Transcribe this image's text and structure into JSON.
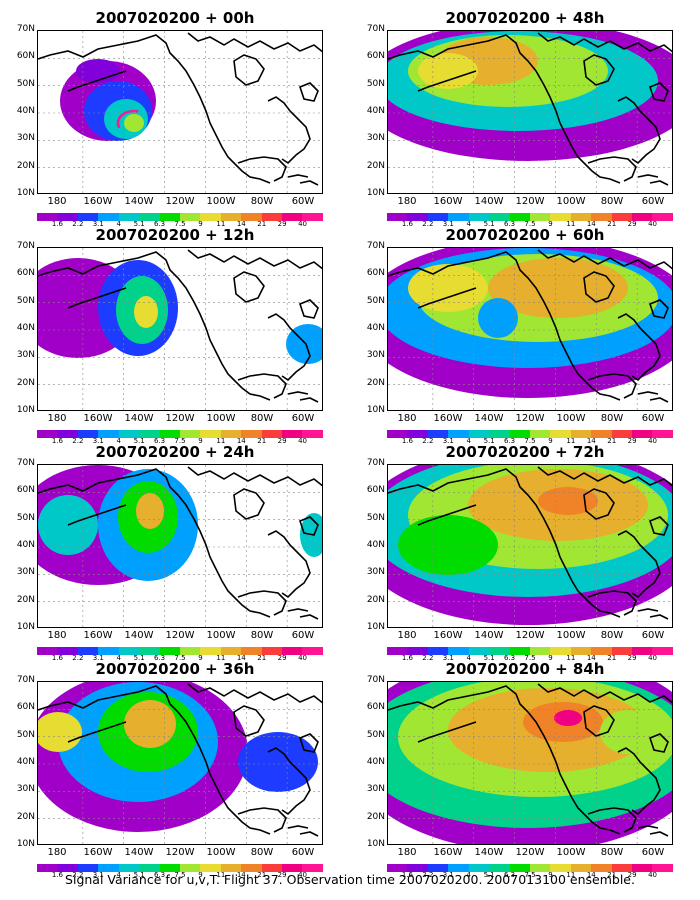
{
  "panels": [
    {
      "title": "2007020200  +  00h",
      "level": 0
    },
    {
      "title": "2007020200  +  48h",
      "level": 4
    },
    {
      "title": "2007020200  +  12h",
      "level": 1
    },
    {
      "title": "2007020200  +  60h",
      "level": 5
    },
    {
      "title": "2007020200  +  24h",
      "level": 2
    },
    {
      "title": "2007020200  +  72h",
      "level": 6
    },
    {
      "title": "2007020200  +  36h",
      "level": 3
    },
    {
      "title": "2007020200  +  84h",
      "level": 7
    }
  ],
  "lat_labels": [
    "70N",
    "60N",
    "50N",
    "40N",
    "30N",
    "20N",
    "10N"
  ],
  "lon_labels": [
    "180",
    "160W",
    "140W",
    "120W",
    "100W",
    "80W",
    "60W"
  ],
  "colorbar": {
    "labels": [
      "1.6",
      "2.2",
      "3.1",
      "4",
      "5.1",
      "6.3",
      "7.5",
      "9",
      "11",
      "14",
      "21",
      "29",
      "40"
    ],
    "colors": [
      "#a000c8",
      "#8200dc",
      "#1e3cff",
      "#00a0ff",
      "#00c8c8",
      "#00d28c",
      "#00dc00",
      "#a0e632",
      "#e6dc32",
      "#e6af2d",
      "#f08228",
      "#fa3c3c",
      "#f00082",
      "#ff1493"
    ]
  },
  "caption": "Signal Variance for u,v,T. Flight 37. Observation time 2007020200. 2007013100 ensemble."
}
